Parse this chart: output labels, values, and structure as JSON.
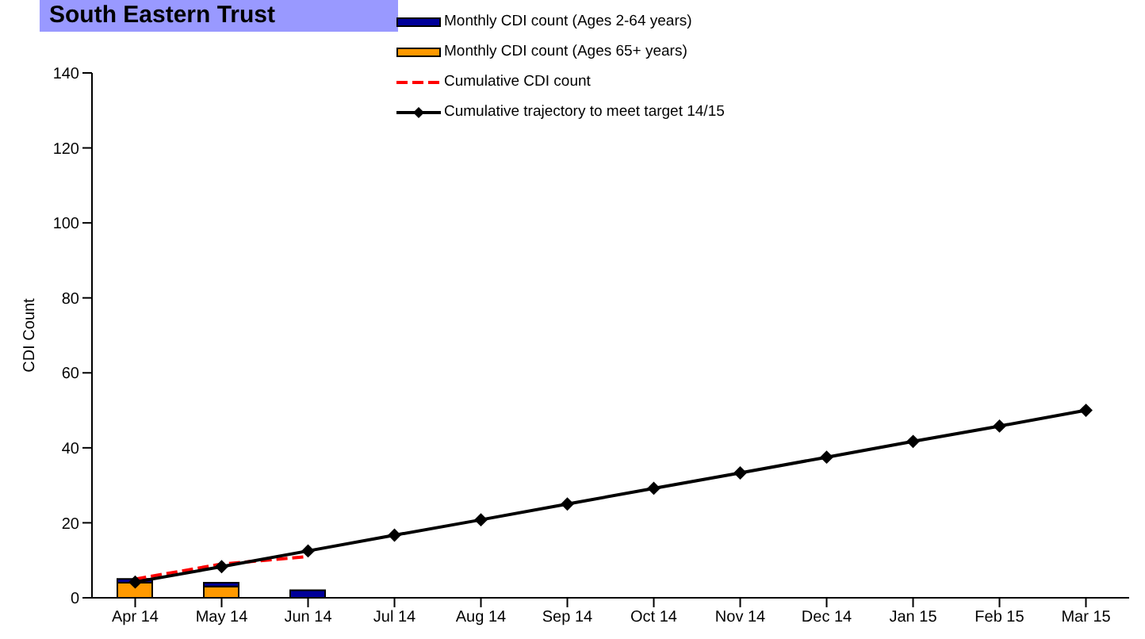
{
  "chart_data": {
    "type": "bar",
    "title": "South Eastern Trust",
    "ylabel": "CDI Count",
    "categories": [
      "Apr 14",
      "May 14",
      "Jun 14",
      "Jul 14",
      "Aug 14",
      "Sep 14",
      "Oct 14",
      "Nov 14",
      "Dec 14",
      "Jan 15",
      "Feb 15",
      "Mar 15"
    ],
    "stacked": true,
    "ylim": [
      0,
      140
    ],
    "yticks": [
      0,
      20,
      40,
      60,
      80,
      100,
      120,
      140
    ],
    "grid": false,
    "legend": "top",
    "series": [
      {
        "name": "Monthly CDI count (Ages 65+ years)",
        "color": "#ff9900",
        "values": [
          4,
          3,
          0,
          null,
          null,
          null,
          null,
          null,
          null,
          null,
          null,
          null
        ]
      },
      {
        "name": "Monthly CDI count (Ages 2-64 years)",
        "color": "#000099",
        "values": [
          1,
          1,
          2,
          null,
          null,
          null,
          null,
          null,
          null,
          null,
          null,
          null
        ]
      },
      {
        "name": "Cumulative CDI count",
        "type": "line",
        "color": "#ff0000",
        "line_style": "dashed",
        "marker": "none",
        "values": [
          5,
          9,
          11,
          null,
          null,
          null,
          null,
          null,
          null,
          null,
          null,
          null
        ]
      },
      {
        "name": "Cumulative trajectory to meet target 14/15",
        "type": "line",
        "color": "#000000",
        "line_style": "solid",
        "marker": "diamond",
        "values": [
          4.2,
          8.3,
          12.5,
          16.7,
          20.8,
          25,
          29.2,
          33.3,
          37.5,
          41.7,
          45.8,
          50
        ]
      }
    ]
  }
}
